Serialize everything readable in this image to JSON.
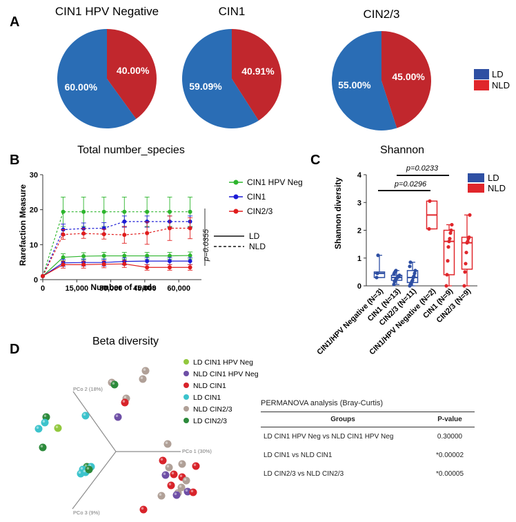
{
  "panels": {
    "A": "A",
    "B": "B",
    "C": "C",
    "D": "D"
  },
  "colors": {
    "LD": "#2a6db5",
    "NLD": "#c1272d",
    "boxLD": "#2e4fa3",
    "boxNLD": "#e0262b",
    "green": "#2db52d",
    "blue": "#1c1cd6",
    "red": "#e01c1c"
  },
  "pies": {
    "legend": [
      "LD",
      "NLD"
    ],
    "charts": [
      {
        "title": "CIN1 HPV Negative",
        "LD": 60.0,
        "NLD": 40.0,
        "LD_label": "60.00%",
        "NLD_label": "40.00%"
      },
      {
        "title": "CIN1",
        "LD": 59.09,
        "NLD": 40.91,
        "LD_label": "59.09%",
        "NLD_label": "40.91%"
      },
      {
        "title": "CIN2/3",
        "LD": 55.0,
        "NLD": 45.0,
        "LD_label": "55.00%",
        "NLD_label": "45.00%"
      }
    ]
  },
  "chart_data": [
    {
      "type": "pie",
      "title": "CIN1 HPV Negative",
      "labels": [
        "LD",
        "NLD"
      ],
      "values": [
        60.0,
        40.0
      ]
    },
    {
      "type": "pie",
      "title": "CIN1",
      "labels": [
        "LD",
        "NLD"
      ],
      "values": [
        59.09,
        40.91
      ]
    },
    {
      "type": "pie",
      "title": "CIN2/3",
      "labels": [
        "LD",
        "NLD"
      ],
      "values": [
        55.0,
        45.0
      ]
    },
    {
      "type": "line",
      "title": "Total number_species",
      "xlabel": "Number of reads",
      "ylabel": "Rarefaction Measure",
      "xlim": [
        0,
        70000
      ],
      "ylim": [
        0,
        30
      ],
      "xticks": [
        0,
        15000,
        30000,
        45000,
        60000
      ],
      "xtick_labels": [
        "0",
        "15,000",
        "30,000",
        "45,000",
        "60,000"
      ],
      "yticks": [
        0,
        10,
        20,
        30
      ],
      "legend": [
        "CIN1 HPV Neg",
        "CIN1",
        "CIN2/3"
      ],
      "style_legend": [
        "LD",
        "NLD"
      ],
      "annotation": "p=0.0355",
      "x": [
        0,
        9000,
        18000,
        27000,
        36000,
        46000,
        56000,
        65000
      ],
      "series": [
        {
          "name": "CIN1 HPV Neg",
          "color": "green",
          "style": "NLD",
          "values": [
            1,
            19.4,
            19.4,
            19.4,
            19.4,
            19.4,
            19.4,
            19.4
          ],
          "err": [
            0,
            4.2,
            4.2,
            4.2,
            4.2,
            4.2,
            4.2,
            4.2
          ]
        },
        {
          "name": "CIN1",
          "color": "blue",
          "style": "NLD",
          "values": [
            1,
            14.3,
            14.6,
            14.7,
            16.6,
            16.6,
            16.6,
            16.6
          ],
          "err": [
            0,
            1.6,
            1.6,
            1.6,
            1.6,
            1.6,
            1.6,
            1.6
          ]
        },
        {
          "name": "CIN2/3",
          "color": "red",
          "style": "NLD",
          "values": [
            1,
            12.9,
            13.2,
            13.0,
            12.8,
            13.3,
            14.7,
            14.7
          ],
          "err": [
            0,
            1.4,
            1.4,
            1.4,
            2.4,
            3.2,
            3.5,
            3.0
          ]
        },
        {
          "name": "CIN1 HPV Neg",
          "color": "green",
          "style": "LD",
          "values": [
            1,
            6.4,
            6.7,
            6.8,
            6.8,
            6.8,
            6.8,
            6.9
          ],
          "err": [
            0,
            1.0,
            1.0,
            1.0,
            1.0,
            1.0,
            1.0,
            1.0
          ]
        },
        {
          "name": "CIN1",
          "color": "blue",
          "style": "LD",
          "values": [
            1,
            4.8,
            4.9,
            4.9,
            5.2,
            5.3,
            5.3,
            5.3
          ],
          "err": [
            0,
            1.0,
            1.0,
            1.0,
            1.0,
            1.0,
            1.0,
            1.0
          ]
        },
        {
          "name": "CIN2/3",
          "color": "red",
          "style": "LD",
          "values": [
            1,
            4.3,
            4.3,
            4.4,
            4.5,
            3.5,
            3.5,
            3.5
          ],
          "err": [
            0,
            1.0,
            1.0,
            1.0,
            1.0,
            0.8,
            0.8,
            0.8
          ]
        }
      ]
    },
    {
      "type": "box",
      "title": "Shannon",
      "ylabel": "Shannon diversity",
      "ylim": [
        0,
        4
      ],
      "yticks": [
        0,
        1,
        2,
        3,
        4
      ],
      "categories": [
        "CIN1/HPV Negative (N=3)",
        "CIN1 (N=13)",
        "CIN2/3 (N=11)",
        "CIN1/HPV Negative (N=2)",
        "CIN1 (N=9)",
        "CIN2/3 (N=9)"
      ],
      "legend": [
        "LD",
        "NLD"
      ],
      "annotations": [
        "p=0.0296",
        "p=0.0233"
      ],
      "boxes": [
        {
          "group": "LD",
          "min": 0.3,
          "q1": 0.3,
          "median": 0.45,
          "q3": 0.5,
          "max": 1.1,
          "points": [
            0.3,
            0.45,
            1.1
          ]
        },
        {
          "group": "LD",
          "min": 0.05,
          "q1": 0.2,
          "median": 0.3,
          "q3": 0.38,
          "max": 0.55,
          "points": [
            0.05,
            0.15,
            0.2,
            0.25,
            0.28,
            0.3,
            0.32,
            0.35,
            0.38,
            0.42,
            0.48,
            0.5,
            0.55
          ]
        },
        {
          "group": "LD",
          "min": 0.0,
          "q1": 0.12,
          "median": 0.3,
          "q3": 0.55,
          "max": 0.85,
          "points": [
            0.0,
            0.05,
            0.1,
            0.15,
            0.2,
            0.3,
            0.35,
            0.45,
            0.55,
            0.7,
            0.85
          ]
        },
        {
          "group": "NLD",
          "min": 2.05,
          "q1": 2.05,
          "median": 2.55,
          "q3": 3.05,
          "max": 3.05,
          "points": [
            2.05,
            3.05
          ]
        },
        {
          "group": "NLD",
          "min": 0.0,
          "q1": 0.4,
          "median": 1.6,
          "q3": 2.0,
          "max": 2.2,
          "points": [
            0.0,
            0.4,
            0.9,
            1.4,
            1.6,
            1.7,
            1.9,
            2.0,
            2.2
          ]
        },
        {
          "group": "NLD",
          "min": 0.0,
          "q1": 0.6,
          "median": 1.55,
          "q3": 1.75,
          "max": 2.55,
          "points": [
            0.0,
            0.5,
            0.8,
            1.2,
            1.55,
            1.6,
            1.7,
            1.75,
            2.55
          ]
        }
      ]
    },
    {
      "type": "scatter",
      "title": "Beta diversity",
      "axes": [
        "PCo 1 (30%)",
        "PCo 2 (18%)",
        "PCo 3 (9%)"
      ],
      "legend": [
        {
          "name": "LD CIN1 HPV Neg",
          "color": "#92c83e"
        },
        {
          "name": "NLD CIN1 HPV Neg",
          "color": "#6e4fa6"
        },
        {
          "name": "NLD CIN1",
          "color": "#d8232a"
        },
        {
          "name": "LD CIN1",
          "color": "#3cc3cc"
        },
        {
          "name": "NLD CIN2/3",
          "color": "#b0a097"
        },
        {
          "name": "LD CIN2/3",
          "color": "#2c8a3b"
        }
      ]
    }
  ],
  "line": {
    "title": "Total number_species",
    "xlabel": "Number of reads",
    "ylabel": "Rarefaction Measure",
    "annotation": "p=0.0355",
    "legend": [
      "CIN1 HPV Neg",
      "CIN1",
      "CIN2/3"
    ],
    "style_legend": [
      "LD",
      "NLD"
    ]
  },
  "box": {
    "title": "Shannon",
    "ylabel": "Shannon diversity",
    "p1": "p=0.0296",
    "p2": "p=0.0233",
    "legend": [
      "LD",
      "NLD"
    ]
  },
  "beta": {
    "title": "Beta diversity",
    "legend": [
      "LD CIN1 HPV Neg",
      "NLD CIN1 HPV Neg",
      "NLD CIN1",
      "LD CIN1",
      "NLD CIN2/3",
      "LD CIN2/3"
    ],
    "axis1": "PCo 1 (30%)",
    "axis2": "PCo 2 (18%)",
    "axis3": "PCo 3 (9%)"
  },
  "permanova": {
    "title": "PERMANOVA analysis (Bray-Curtis)",
    "headers": [
      "Groups",
      "P-value"
    ],
    "rows": [
      {
        "group": "LD CIN1 HPV Neg vs NLD CIN1 HPV Neg",
        "p": "0.30000"
      },
      {
        "group": "LD CIN1 vs NLD CIN1",
        "p": "*0.00002"
      },
      {
        "group": "LD CIN2/3 vs NLD CIN2/3",
        "p": "*0.00005"
      }
    ]
  }
}
